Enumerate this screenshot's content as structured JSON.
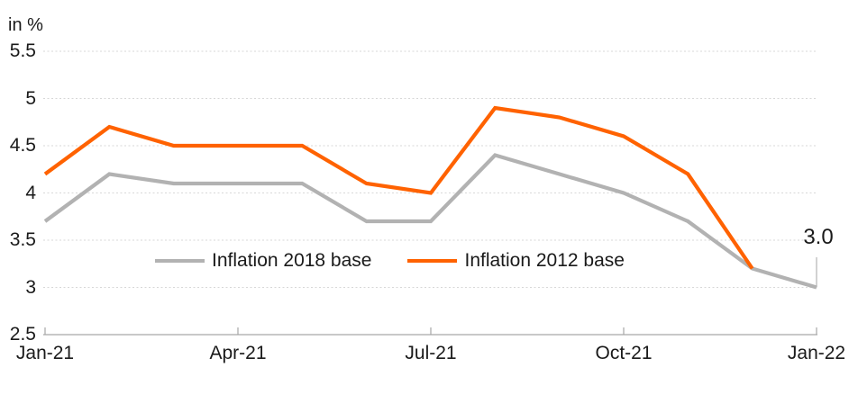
{
  "unit_label": "in %",
  "legend": [
    {
      "label": "Inflation 2018 base",
      "color": "#b2b2b2"
    },
    {
      "label": "Inflation 2012 base",
      "color": "#ff6200"
    }
  ],
  "colors": {
    "grid": "#d7d7d7",
    "axis": "#a6a6a6",
    "text": "#1a1a1a",
    "leader": "#c2c2c2"
  },
  "chart_data": {
    "type": "line",
    "title": "",
    "ylabel": "in %",
    "xlabel": "",
    "x": [
      "Jan-21",
      "Feb-21",
      "Mar-21",
      "Apr-21",
      "May-21",
      "Jun-21",
      "Jul-21",
      "Aug-21",
      "Sep-21",
      "Oct-21",
      "Nov-21",
      "Dec-21",
      "Jan-22"
    ],
    "series": [
      {
        "name": "Inflation 2018 base",
        "color": "#b2b2b2",
        "values": [
          3.7,
          4.2,
          4.1,
          4.1,
          4.1,
          3.7,
          3.7,
          4.4,
          4.2,
          4.0,
          3.7,
          3.2,
          3.0
        ]
      },
      {
        "name": "Inflation 2012 base",
        "color": "#ff6200",
        "values": [
          4.2,
          4.7,
          4.5,
          4.5,
          4.5,
          4.1,
          4.0,
          4.9,
          4.8,
          4.6,
          4.2,
          3.2,
          null
        ]
      }
    ],
    "ylim": [
      2.5,
      5.5
    ],
    "y_ticks": [
      2.5,
      3,
      3.5,
      4,
      4.5,
      5,
      5.5
    ],
    "y_tick_labels": [
      "2.5",
      "3",
      "3.5",
      "4",
      "4.5",
      "5",
      "5.5"
    ],
    "x_tick_indices": [
      0,
      3,
      6,
      9,
      12
    ],
    "x_tick_labels": [
      "Jan-21",
      "Apr-21",
      "Jul-21",
      "Oct-21",
      "Jan-22"
    ],
    "grid": true,
    "legend_position": "inside-bottom-center",
    "end_annotation": {
      "series": "Inflation 2018 base",
      "x": "Jan-22",
      "value": 3.0,
      "label": "3.0"
    }
  }
}
